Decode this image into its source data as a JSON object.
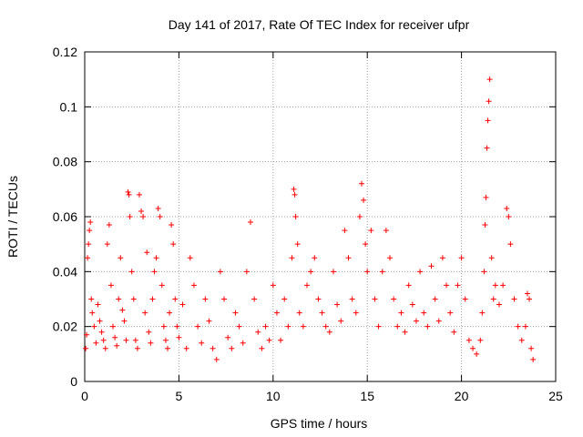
{
  "chart_data": {
    "type": "scatter",
    "title": "Day 141 of 2017, Rate Of TEC Index for receiver ufpr",
    "xlabel": "GPS time / hours",
    "ylabel": "ROTI / TECUs",
    "xlim": [
      0,
      25
    ],
    "ylim": [
      0,
      0.12
    ],
    "xticks": [
      0,
      5,
      10,
      15,
      20,
      25
    ],
    "xtick_labels": [
      "0",
      "5",
      "10",
      "15",
      "20",
      "25"
    ],
    "yticks": [
      0,
      0.02,
      0.04,
      0.06,
      0.08,
      0.1,
      0.12
    ],
    "ytick_labels": [
      "0",
      "0.02",
      "0.04",
      "0.06",
      "0.08",
      "0.1",
      "0.12"
    ],
    "grid": true,
    "marker": "+",
    "color": "#ff0000",
    "series": [
      {
        "name": "ROTI",
        "points": [
          [
            0.05,
            0.012
          ],
          [
            0.1,
            0.017
          ],
          [
            0.15,
            0.045
          ],
          [
            0.2,
            0.05
          ],
          [
            0.25,
            0.055
          ],
          [
            0.3,
            0.058
          ],
          [
            0.35,
            0.03
          ],
          [
            0.4,
            0.025
          ],
          [
            0.5,
            0.02
          ],
          [
            0.6,
            0.014
          ],
          [
            0.7,
            0.028
          ],
          [
            0.8,
            0.022
          ],
          [
            0.9,
            0.018
          ],
          [
            1.0,
            0.015
          ],
          [
            1.1,
            0.012
          ],
          [
            1.2,
            0.05
          ],
          [
            1.3,
            0.057
          ],
          [
            1.4,
            0.035
          ],
          [
            1.5,
            0.02
          ],
          [
            1.6,
            0.016
          ],
          [
            1.7,
            0.013
          ],
          [
            1.8,
            0.03
          ],
          [
            1.9,
            0.045
          ],
          [
            2.0,
            0.026
          ],
          [
            2.1,
            0.022
          ],
          [
            2.2,
            0.015
          ],
          [
            2.3,
            0.069
          ],
          [
            2.35,
            0.068
          ],
          [
            2.4,
            0.06
          ],
          [
            2.5,
            0.04
          ],
          [
            2.6,
            0.03
          ],
          [
            2.7,
            0.015
          ],
          [
            2.8,
            0.012
          ],
          [
            2.9,
            0.068
          ],
          [
            3.0,
            0.062
          ],
          [
            3.1,
            0.06
          ],
          [
            3.2,
            0.025
          ],
          [
            3.3,
            0.047
          ],
          [
            3.4,
            0.018
          ],
          [
            3.5,
            0.014
          ],
          [
            3.6,
            0.03
          ],
          [
            3.7,
            0.04
          ],
          [
            3.8,
            0.045
          ],
          [
            3.9,
            0.063
          ],
          [
            4.0,
            0.06
          ],
          [
            4.1,
            0.035
          ],
          [
            4.2,
            0.02
          ],
          [
            4.3,
            0.015
          ],
          [
            4.4,
            0.012
          ],
          [
            4.5,
            0.025
          ],
          [
            4.6,
            0.057
          ],
          [
            4.7,
            0.05
          ],
          [
            4.8,
            0.03
          ],
          [
            4.9,
            0.02
          ],
          [
            5.0,
            0.016
          ],
          [
            5.2,
            0.028
          ],
          [
            5.4,
            0.012
          ],
          [
            5.6,
            0.045
          ],
          [
            5.8,
            0.035
          ],
          [
            6.0,
            0.02
          ],
          [
            6.2,
            0.014
          ],
          [
            6.4,
            0.03
          ],
          [
            6.6,
            0.022
          ],
          [
            6.8,
            0.012
          ],
          [
            7.0,
            0.008
          ],
          [
            7.2,
            0.04
          ],
          [
            7.4,
            0.03
          ],
          [
            7.6,
            0.016
          ],
          [
            7.8,
            0.012
          ],
          [
            8.0,
            0.025
          ],
          [
            8.2,
            0.02
          ],
          [
            8.4,
            0.014
          ],
          [
            8.6,
            0.04
          ],
          [
            8.8,
            0.058
          ],
          [
            9.0,
            0.03
          ],
          [
            9.2,
            0.018
          ],
          [
            9.4,
            0.012
          ],
          [
            9.6,
            0.02
          ],
          [
            9.8,
            0.015
          ],
          [
            10.0,
            0.035
          ],
          [
            10.2,
            0.025
          ],
          [
            10.4,
            0.015
          ],
          [
            10.6,
            0.03
          ],
          [
            10.8,
            0.02
          ],
          [
            11.0,
            0.045
          ],
          [
            11.1,
            0.07
          ],
          [
            11.15,
            0.068
          ],
          [
            11.2,
            0.06
          ],
          [
            11.3,
            0.05
          ],
          [
            11.4,
            0.025
          ],
          [
            11.6,
            0.02
          ],
          [
            11.8,
            0.035
          ],
          [
            12.0,
            0.04
          ],
          [
            12.2,
            0.045
          ],
          [
            12.4,
            0.03
          ],
          [
            12.6,
            0.025
          ],
          [
            12.8,
            0.02
          ],
          [
            13.0,
            0.018
          ],
          [
            13.2,
            0.04
          ],
          [
            13.4,
            0.028
          ],
          [
            13.6,
            0.022
          ],
          [
            13.8,
            0.055
          ],
          [
            14.0,
            0.045
          ],
          [
            14.2,
            0.03
          ],
          [
            14.4,
            0.025
          ],
          [
            14.6,
            0.06
          ],
          [
            14.7,
            0.072
          ],
          [
            14.8,
            0.066
          ],
          [
            14.9,
            0.05
          ],
          [
            15.0,
            0.04
          ],
          [
            15.2,
            0.055
          ],
          [
            15.4,
            0.03
          ],
          [
            15.6,
            0.02
          ],
          [
            15.8,
            0.04
          ],
          [
            16.0,
            0.055
          ],
          [
            16.2,
            0.045
          ],
          [
            16.4,
            0.03
          ],
          [
            16.6,
            0.02
          ],
          [
            16.8,
            0.025
          ],
          [
            17.0,
            0.018
          ],
          [
            17.2,
            0.035
          ],
          [
            17.4,
            0.028
          ],
          [
            17.6,
            0.022
          ],
          [
            17.8,
            0.04
          ],
          [
            18.0,
            0.025
          ],
          [
            18.2,
            0.02
          ],
          [
            18.4,
            0.042
          ],
          [
            18.6,
            0.03
          ],
          [
            18.8,
            0.022
          ],
          [
            19.0,
            0.045
          ],
          [
            19.2,
            0.035
          ],
          [
            19.4,
            0.025
          ],
          [
            19.6,
            0.018
          ],
          [
            19.8,
            0.035
          ],
          [
            20.0,
            0.045
          ],
          [
            20.2,
            0.03
          ],
          [
            20.4,
            0.015
          ],
          [
            20.6,
            0.012
          ],
          [
            20.8,
            0.01
          ],
          [
            21.0,
            0.015
          ],
          [
            21.1,
            0.025
          ],
          [
            21.2,
            0.04
          ],
          [
            21.25,
            0.057
          ],
          [
            21.3,
            0.067
          ],
          [
            21.35,
            0.085
          ],
          [
            21.4,
            0.095
          ],
          [
            21.45,
            0.102
          ],
          [
            21.5,
            0.11
          ],
          [
            21.6,
            0.045
          ],
          [
            21.7,
            0.03
          ],
          [
            21.8,
            0.035
          ],
          [
            22.0,
            0.028
          ],
          [
            22.2,
            0.035
          ],
          [
            22.4,
            0.063
          ],
          [
            22.5,
            0.06
          ],
          [
            22.6,
            0.05
          ],
          [
            22.8,
            0.03
          ],
          [
            23.0,
            0.02
          ],
          [
            23.2,
            0.015
          ],
          [
            23.4,
            0.02
          ],
          [
            23.5,
            0.032
          ],
          [
            23.6,
            0.03
          ],
          [
            23.7,
            0.012
          ],
          [
            23.8,
            0.008
          ]
        ]
      }
    ]
  }
}
